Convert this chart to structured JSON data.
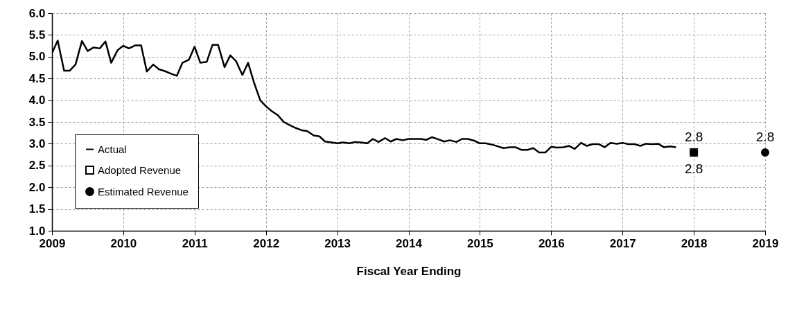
{
  "chart_data": {
    "type": "line",
    "xlabel": "Fiscal Year Ending",
    "xlim": [
      2009,
      2019
    ],
    "xticks": [
      2009,
      2010,
      2011,
      2012,
      2013,
      2014,
      2015,
      2016,
      2017,
      2018,
      2019
    ],
    "ylim": [
      1,
      6
    ],
    "yticks": [
      {
        "value": 1,
        "label": "1.0"
      },
      {
        "value": 1.5,
        "label": "1.5"
      },
      {
        "value": 2,
        "label": "2.0"
      },
      {
        "value": 2.5,
        "label": "2.5"
      },
      {
        "value": 3,
        "label": "3.0"
      },
      {
        "value": 3.5,
        "label": "3.5"
      },
      {
        "value": 4,
        "label": "4.0"
      },
      {
        "value": 4.5,
        "label": "4.5"
      },
      {
        "value": 5,
        "label": "5.0"
      },
      {
        "value": 5.5,
        "label": "5.5"
      },
      {
        "value": 6,
        "label": "6.0"
      }
    ],
    "grid": true,
    "legend": "bottom left",
    "series": [
      {
        "name": "Actual",
        "color": "#000000",
        "marker": "none",
        "line_style": "solid",
        "x": [
          2009.0,
          2009.08,
          2009.17,
          2009.25,
          2009.33,
          2009.42,
          2009.5,
          2009.58,
          2009.67,
          2009.75,
          2009.83,
          2009.92,
          2010.0,
          2010.08,
          2010.17,
          2010.25,
          2010.33,
          2010.42,
          2010.5,
          2010.58,
          2010.67,
          2010.75,
          2010.83,
          2010.92,
          2011.0,
          2011.08,
          2011.17,
          2011.25,
          2011.33,
          2011.42,
          2011.5,
          2011.58,
          2011.67,
          2011.75,
          2011.83,
          2011.92,
          2012.0,
          2012.08,
          2012.17,
          2012.25,
          2012.33,
          2012.42,
          2012.5,
          2012.58,
          2012.67,
          2012.75,
          2012.83,
          2012.92,
          2013.0,
          2013.08,
          2013.17,
          2013.25,
          2013.33,
          2013.42,
          2013.5,
          2013.58,
          2013.67,
          2013.75,
          2013.83,
          2013.92,
          2014.0,
          2014.08,
          2014.17,
          2014.25,
          2014.33,
          2014.42,
          2014.5,
          2014.58,
          2014.67,
          2014.75,
          2014.83,
          2014.92,
          2015.0,
          2015.08,
          2015.17,
          2015.25,
          2015.33,
          2015.42,
          2015.5,
          2015.58,
          2015.67,
          2015.75,
          2015.83,
          2015.92,
          2016.0,
          2016.08,
          2016.17,
          2016.25,
          2016.33,
          2016.42,
          2016.5,
          2016.58,
          2016.67,
          2016.75,
          2016.83,
          2016.92,
          2017.0,
          2017.08,
          2017.17,
          2017.25,
          2017.33,
          2017.42,
          2017.5,
          2017.58,
          2017.67,
          2017.75
        ],
        "values": [
          5.08,
          5.37,
          4.68,
          4.68,
          4.82,
          5.36,
          5.13,
          5.21,
          5.19,
          5.35,
          4.86,
          5.15,
          5.25,
          5.19,
          5.26,
          5.26,
          4.66,
          4.82,
          4.71,
          4.67,
          4.61,
          4.56,
          4.86,
          4.93,
          5.23,
          4.86,
          4.88,
          5.27,
          5.27,
          4.76,
          5.03,
          4.9,
          4.58,
          4.86,
          4.42,
          4.0,
          3.86,
          3.75,
          3.65,
          3.5,
          3.43,
          3.36,
          3.31,
          3.29,
          3.19,
          3.17,
          3.05,
          3.03,
          3.01,
          3.03,
          3.01,
          3.04,
          3.03,
          3.01,
          3.11,
          3.04,
          3.13,
          3.05,
          3.11,
          3.08,
          3.11,
          3.11,
          3.11,
          3.09,
          3.15,
          3.1,
          3.05,
          3.08,
          3.04,
          3.11,
          3.11,
          3.07,
          3.01,
          3.01,
          2.98,
          2.94,
          2.9,
          2.92,
          2.92,
          2.86,
          2.86,
          2.9,
          2.8,
          2.8,
          2.93,
          2.91,
          2.92,
          2.95,
          2.88,
          3.02,
          2.95,
          2.99,
          2.99,
          2.92,
          3.02,
          3.0,
          3.02,
          2.99,
          2.99,
          2.95,
          3.0,
          2.99,
          3.0,
          2.92,
          2.94,
          2.92
        ]
      },
      {
        "name": "Adopted Revenue",
        "type": "scatter",
        "color": "#ffffff",
        "marker": "square",
        "x": [
          2018
        ],
        "values": [
          2.8
        ],
        "value_labels": [
          "2.8"
        ]
      },
      {
        "name": "Estimated Revenue",
        "type": "scatter",
        "color": "#000000",
        "marker": "circle",
        "x": [
          2018,
          2019
        ],
        "values": [
          2.8,
          2.8
        ],
        "value_labels": [
          "2.8",
          "2.8"
        ]
      }
    ]
  }
}
